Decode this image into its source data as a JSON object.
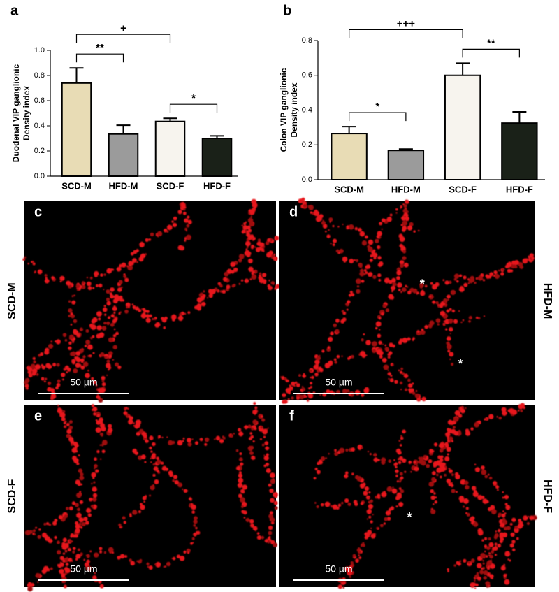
{
  "chart_data": [
    {
      "type": "bar",
      "panel": "a",
      "ylabel": [
        "Duodenal VIP ganglionic",
        "Density index"
      ],
      "categories": [
        "SCD-M",
        "HFD-M",
        "SCD-F",
        "HFD-F"
      ],
      "values": [
        0.74,
        0.335,
        0.435,
        0.3
      ],
      "errors": [
        0.12,
        0.07,
        0.025,
        0.02
      ],
      "colors": [
        "#e8dcb5",
        "#9b9b9b",
        "#f7f4ee",
        "#1a2118"
      ],
      "ylim": [
        0,
        1.0
      ],
      "yticks": [
        {
          "value": 0,
          "label": "0.0"
        },
        0.2,
        0.4,
        0.6,
        0.8,
        {
          "value": 1.0,
          "label": "1.0"
        }
      ],
      "brackets": [
        {
          "label": "**",
          "between": [
            "SCD-M",
            "HFD-M"
          ]
        },
        {
          "label": "*",
          "between": [
            "SCD-F",
            "HFD-F"
          ]
        },
        {
          "label": "+",
          "between": [
            "SCD-M",
            "SCD-F"
          ]
        }
      ]
    },
    {
      "type": "bar",
      "panel": "b",
      "ylabel": [
        "Colon VIP ganglionic",
        "Density index"
      ],
      "categories": [
        "SCD-M",
        "HFD-M",
        "SCD-F",
        "HFD-F"
      ],
      "values": [
        0.265,
        0.168,
        0.6,
        0.325
      ],
      "errors": [
        0.04,
        0.008,
        0.07,
        0.065
      ],
      "colors": [
        "#e8dcb5",
        "#9b9b9b",
        "#f7f4ee",
        "#1a2118"
      ],
      "ylim": [
        0,
        0.8
      ],
      "yticks": [
        {
          "value": 0,
          "label": "0.0"
        },
        0.2,
        0.4,
        0.6,
        0.8
      ],
      "brackets": [
        {
          "label": "*",
          "between": [
            "SCD-M",
            "HFD-M"
          ]
        },
        {
          "label": "+++",
          "between": [
            "SCD-M",
            "SCD-F"
          ]
        },
        {
          "label": "**",
          "between": [
            "SCD-F",
            "HFD-F"
          ]
        }
      ]
    }
  ],
  "images": [
    {
      "panel": "c",
      "group": "SCD-M",
      "scale": "50 µm",
      "markers": []
    },
    {
      "panel": "d",
      "group": "HFD-M",
      "scale": "50 µm",
      "markers": [
        "*",
        "*"
      ]
    },
    {
      "panel": "e",
      "group": "SCD-F",
      "scale": "50 µm",
      "markers": []
    },
    {
      "panel": "f",
      "group": "HFD-F",
      "scale": "50 µm",
      "markers": [
        "*"
      ]
    }
  ]
}
